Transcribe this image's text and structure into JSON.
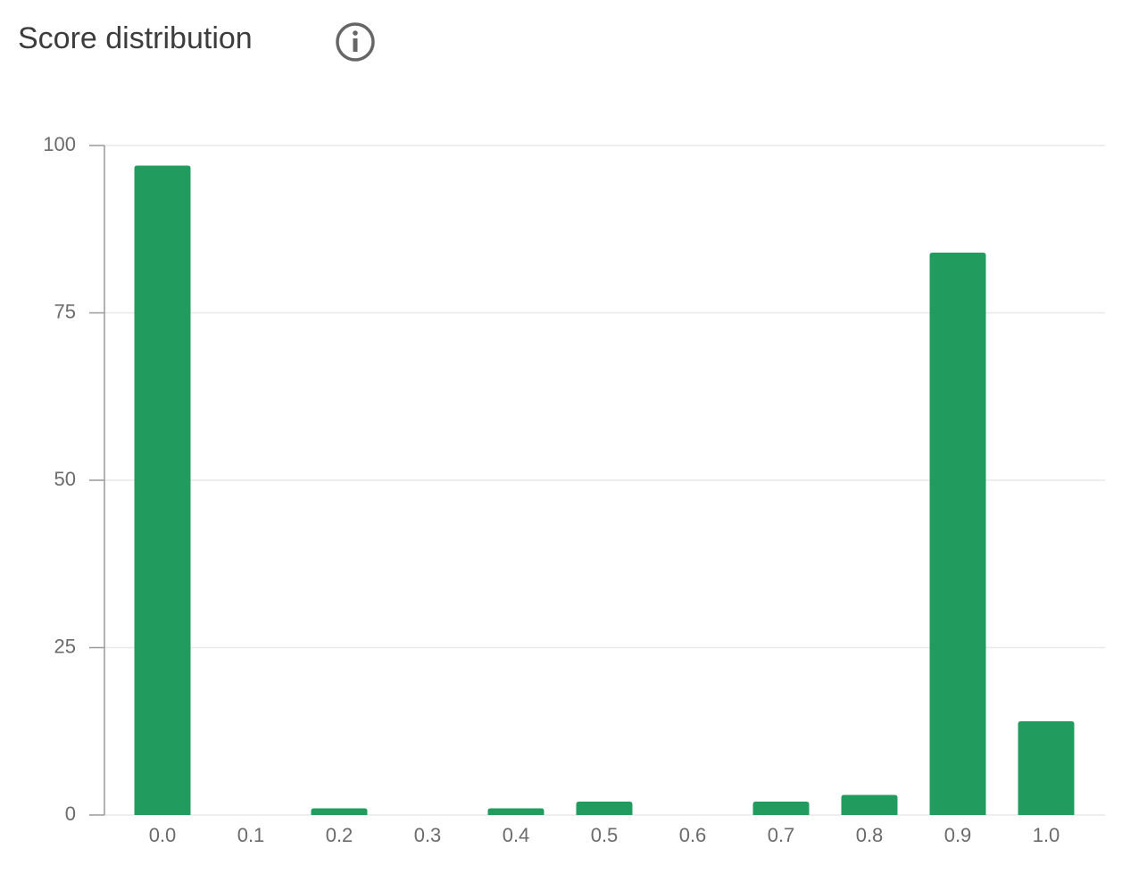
{
  "chart_data": {
    "type": "bar",
    "title": "Score distribution",
    "categories": [
      "0.0",
      "0.1",
      "0.2",
      "0.3",
      "0.4",
      "0.5",
      "0.6",
      "0.7",
      "0.8",
      "0.9",
      "1.0"
    ],
    "values": [
      97,
      0,
      1,
      0,
      1,
      2,
      0,
      2,
      3,
      84,
      14
    ],
    "color": "#219c5e",
    "ylim": [
      0,
      100
    ],
    "yticks": [
      0,
      25,
      50,
      75,
      100
    ],
    "grid": true
  }
}
